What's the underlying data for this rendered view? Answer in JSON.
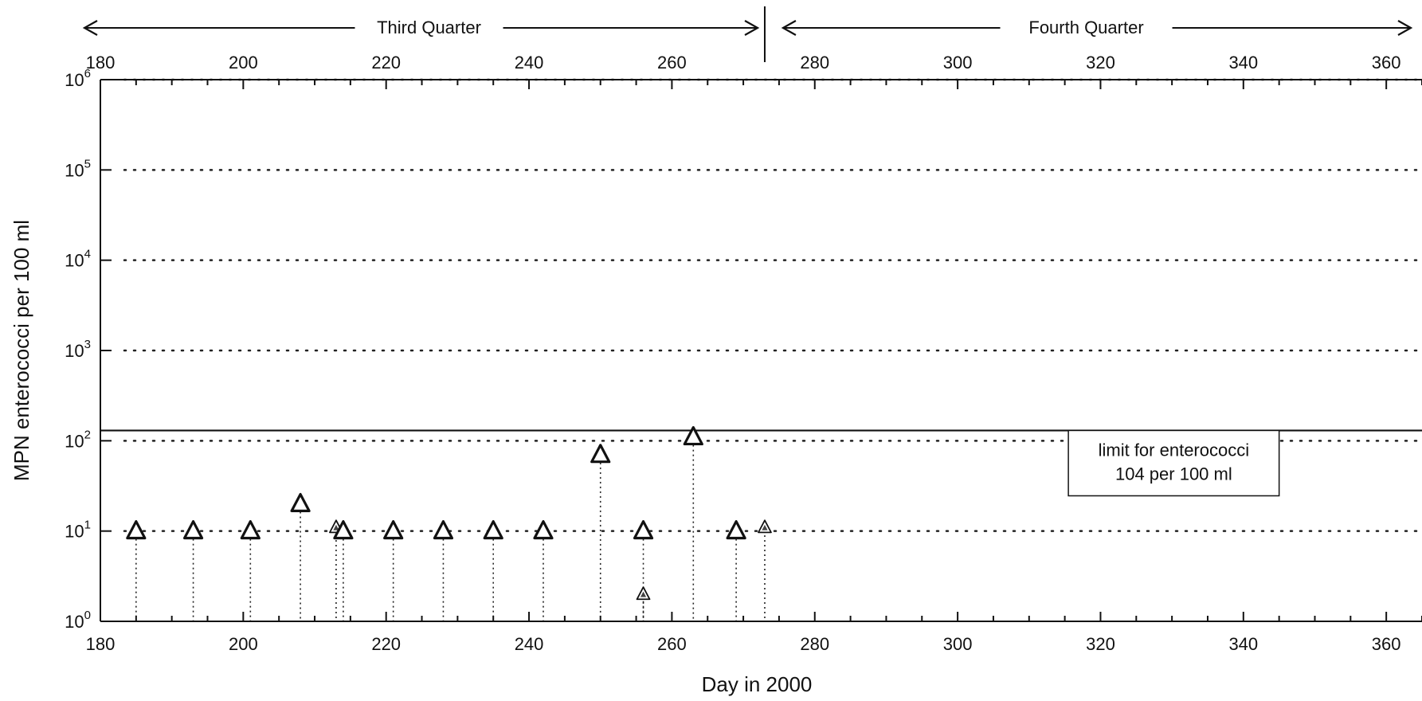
{
  "chart_data": {
    "type": "scatter",
    "xlabel": "Day in 2000",
    "ylabel": "MPN enterococci per 100 ml",
    "xlim": [
      180,
      365
    ],
    "ylim": [
      1,
      1000000
    ],
    "y_scale": "log",
    "x_ticks": [
      180,
      200,
      220,
      240,
      260,
      280,
      300,
      320,
      340,
      360
    ],
    "y_ticks": [
      {
        "base": "10",
        "exp": "0",
        "value": 1
      },
      {
        "base": "10",
        "exp": "1",
        "value": 10
      },
      {
        "base": "10",
        "exp": "2",
        "value": 100
      },
      {
        "base": "10",
        "exp": "3",
        "value": 1000
      },
      {
        "base": "10",
        "exp": "4",
        "value": 10000
      },
      {
        "base": "10",
        "exp": "5",
        "value": 100000
      },
      {
        "base": "10",
        "exp": "6",
        "value": 1000000
      }
    ],
    "grid": "dotted horizontal at each decade",
    "quarters": [
      {
        "label": "Third Quarter",
        "start": 180,
        "end": 272
      },
      {
        "label": "Fourth Quarter",
        "start": 274,
        "end": 365
      }
    ],
    "quarter_divider_day": 273,
    "limit": {
      "value": 104,
      "label_line1": "limit for enterococci",
      "label_line2": "104 per 100 ml"
    },
    "points": [
      {
        "x": 185,
        "y": 10,
        "style": "bold"
      },
      {
        "x": 193,
        "y": 10,
        "style": "bold"
      },
      {
        "x": 201,
        "y": 10,
        "style": "bold"
      },
      {
        "x": 208,
        "y": 20,
        "style": "bold"
      },
      {
        "x": 213,
        "y": 11,
        "style": "light"
      },
      {
        "x": 214,
        "y": 10,
        "style": "bold"
      },
      {
        "x": 221,
        "y": 10,
        "style": "bold"
      },
      {
        "x": 228,
        "y": 10,
        "style": "bold"
      },
      {
        "x": 235,
        "y": 10,
        "style": "bold"
      },
      {
        "x": 242,
        "y": 10,
        "style": "bold"
      },
      {
        "x": 250,
        "y": 70,
        "style": "bold"
      },
      {
        "x": 256,
        "y": 10,
        "style": "bold"
      },
      {
        "x": 256,
        "y": 2,
        "style": "light"
      },
      {
        "x": 263,
        "y": 110,
        "style": "bold"
      },
      {
        "x": 269,
        "y": 10,
        "style": "bold"
      },
      {
        "x": 273,
        "y": 11,
        "style": "light"
      }
    ]
  }
}
